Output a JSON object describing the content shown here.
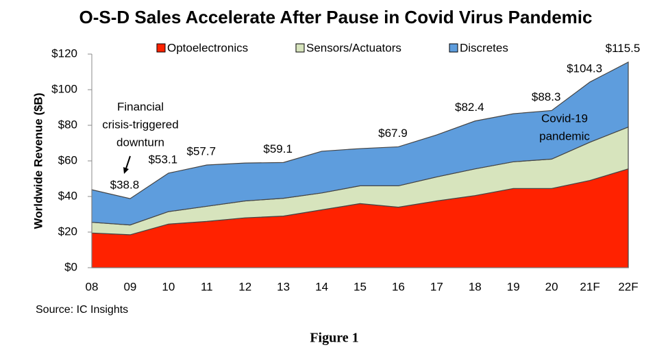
{
  "chart_data": {
    "type": "stacked-area",
    "title": "O-S-D Sales Accelerate After Pause in Covid Virus Pandemic",
    "y_label": "Worldwide Revenue ($B)",
    "categories": [
      "08",
      "09",
      "10",
      "11",
      "12",
      "13",
      "14",
      "15",
      "16",
      "17",
      "18",
      "19",
      "20",
      "21F",
      "22F"
    ],
    "series": [
      {
        "name": "Optoelectronics",
        "color": "#ff2200",
        "values": [
          19.5,
          18.5,
          24.5,
          26,
          28,
          29,
          32.5,
          36,
          34,
          37.5,
          40.5,
          44.5,
          44.5,
          49,
          55.5
        ]
      },
      {
        "name": "Sensors/Actuators",
        "color": "#d7e4bd",
        "values": [
          6,
          5.5,
          7,
          8.5,
          9.5,
          10,
          9.5,
          10,
          12,
          13.5,
          15,
          15,
          16.5,
          21.5,
          23.5
        ]
      },
      {
        "name": "Discretes",
        "color": "#5e9ddd",
        "values": [
          18.3,
          14.8,
          21.6,
          23.2,
          21.3,
          20.1,
          23.4,
          20.9,
          21.9,
          23.6,
          26.9,
          27,
          27.3,
          33.8,
          36.5
        ]
      }
    ],
    "total_labels": [
      null,
      "$38.8",
      "$53.1",
      "$57.7",
      null,
      "$59.1",
      null,
      null,
      "$67.9",
      null,
      "$82.4",
      null,
      "$88.3",
      "$104.3",
      "$115.5"
    ],
    "ylim": [
      0,
      120
    ],
    "yticks": [
      {
        "value": 0,
        "label": "$0"
      },
      {
        "value": 20,
        "label": "$20"
      },
      {
        "value": 40,
        "label": "$40"
      },
      {
        "value": 60,
        "label": "$60"
      },
      {
        "value": 80,
        "label": "$80"
      },
      {
        "value": 100,
        "label": "$100"
      },
      {
        "value": 120,
        "label": "$120"
      }
    ],
    "annotations": [
      {
        "lines": [
          "Financial",
          "crisis-triggered",
          "downturn"
        ]
      },
      {
        "lines": [
          "Covid-19",
          "pandemic"
        ]
      }
    ],
    "source": "Source: IC Insights",
    "caption": "Figure 1"
  }
}
